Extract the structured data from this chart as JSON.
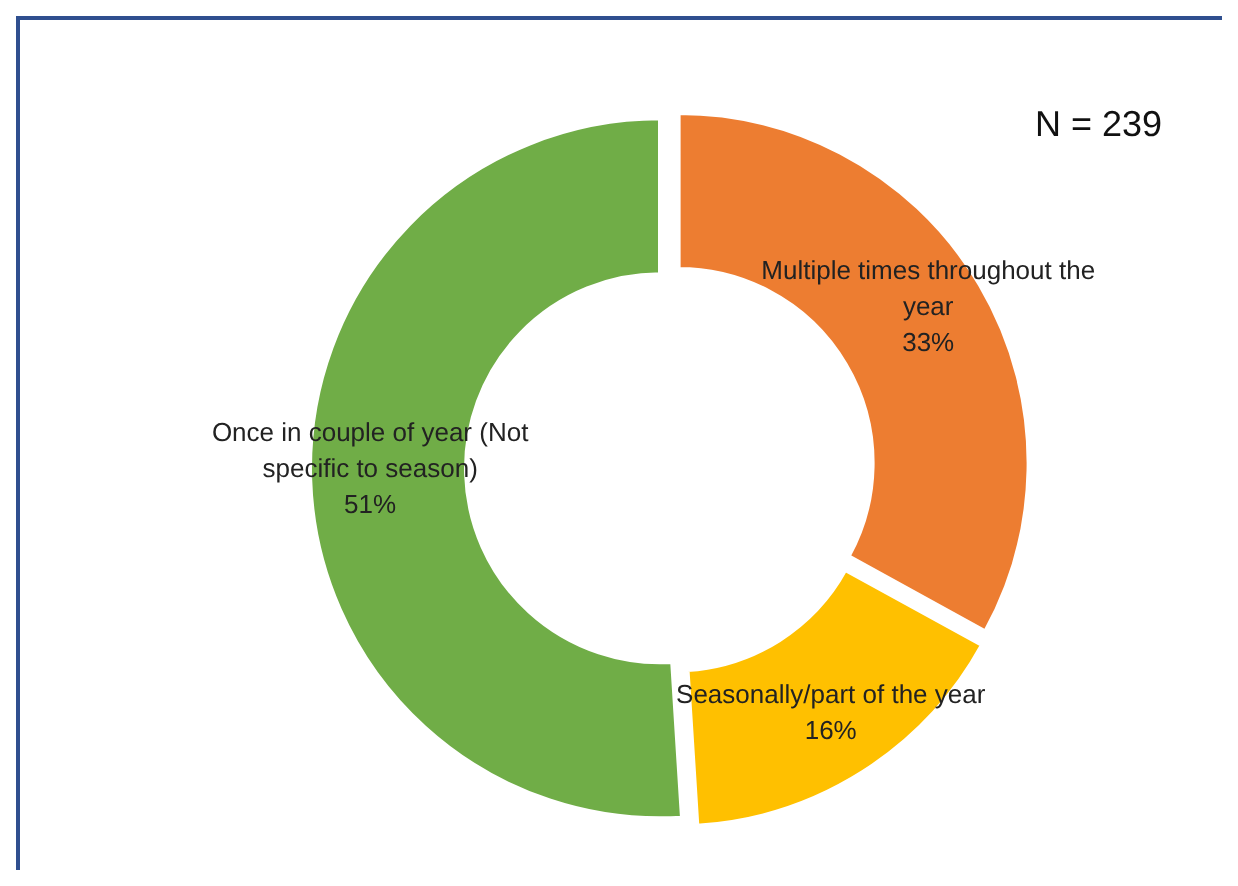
{
  "chart_data": {
    "type": "donut",
    "categories": [
      "Multiple times throughout the year",
      "Seasonally/part of the year",
      "Once in couple of year (Not specific to season)"
    ],
    "values": [
      33,
      16,
      51
    ],
    "colors": [
      "#ed7d31",
      "#ffc000",
      "#70ad47"
    ],
    "value_labels": [
      "33%",
      "16%",
      "51%"
    ],
    "annotations": [
      "N = 239"
    ]
  }
}
